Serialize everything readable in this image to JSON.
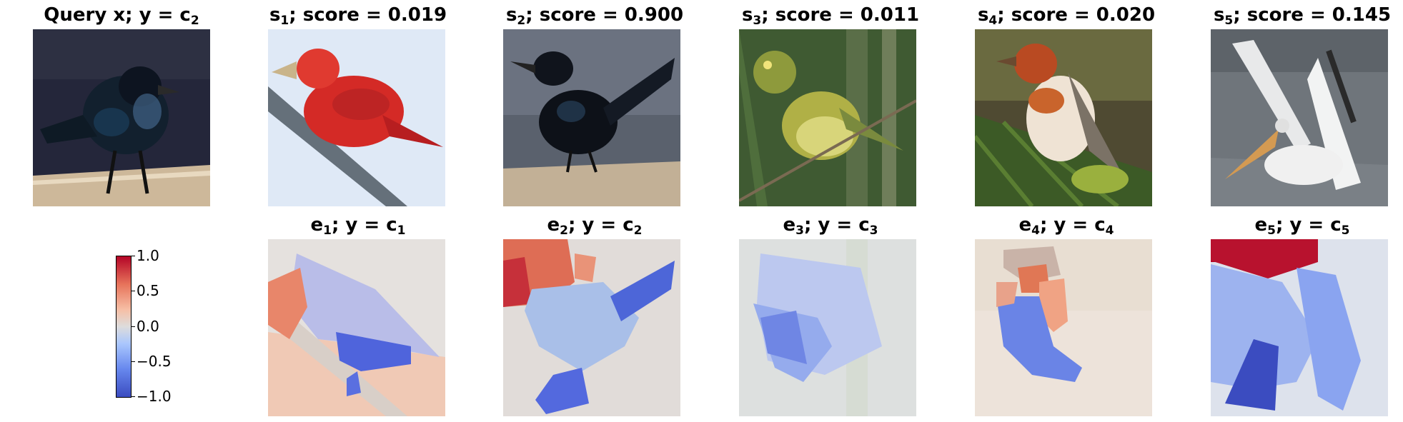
{
  "top_row": [
    {
      "prefix": "Query x; y = c",
      "sub": "2"
    },
    {
      "prefix": "s",
      "sub": "1",
      "suffix": "; score = 0.019"
    },
    {
      "prefix": "s",
      "sub": "2",
      "suffix": "; score = 0.900"
    },
    {
      "prefix": "s",
      "sub": "3",
      "suffix": "; score = 0.011"
    },
    {
      "prefix": "s",
      "sub": "4",
      "suffix": "; score = 0.020"
    },
    {
      "prefix": "s",
      "sub": "5",
      "suffix": "; score = 0.145"
    }
  ],
  "bottom_row": [
    {
      "prefix": "e",
      "sub": "1",
      "mid": "; y = c",
      "sub2": "1"
    },
    {
      "prefix": "e",
      "sub": "2",
      "mid": "; y = c",
      "sub2": "2"
    },
    {
      "prefix": "e",
      "sub": "3",
      "mid": "; y = c",
      "sub2": "3"
    },
    {
      "prefix": "e",
      "sub": "4",
      "mid": "; y = c",
      "sub2": "4"
    },
    {
      "prefix": "e",
      "sub": "5",
      "mid": "; y = c",
      "sub2": "5"
    }
  ],
  "colorbar": {
    "ticks": [
      "1.0",
      "0.5",
      "0.0",
      "−0.5",
      "−1.0"
    ],
    "cmap": [
      "#b40426",
      "#dddcdc",
      "#3b4cc0"
    ]
  }
}
